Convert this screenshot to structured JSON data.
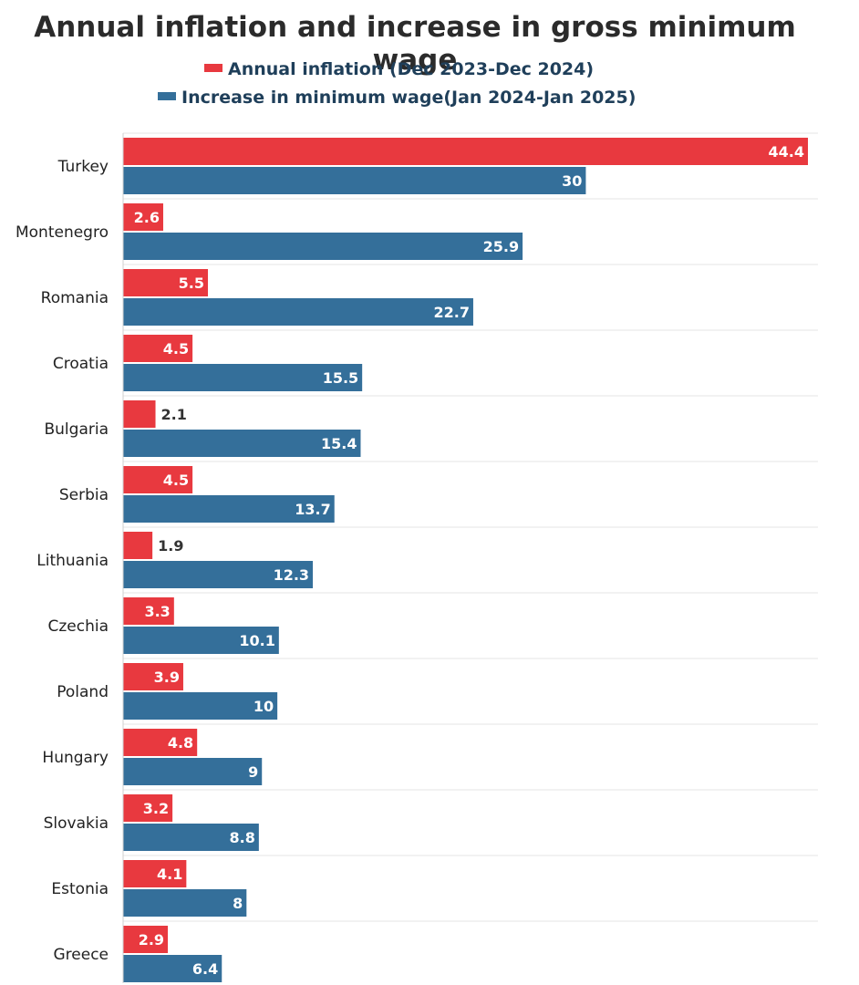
{
  "chart_data": {
    "type": "bar",
    "orientation": "horizontal",
    "title": "Annual inflation and increase in gross minimum wage",
    "categories": [
      "Turkey",
      "Montenegro",
      "Romania",
      "Croatia",
      "Bulgaria",
      "Serbia",
      "Lithuania",
      "Czechia",
      "Poland",
      "Hungary",
      "Slovakia",
      "Estonia",
      "Greece"
    ],
    "series": [
      {
        "name": "Annual inflation (Dec 2023-Dec 2024)",
        "color": "#e8393f",
        "values": [
          44.4,
          2.6,
          5.5,
          4.5,
          2.1,
          4.5,
          1.9,
          3.3,
          3.9,
          4.8,
          3.2,
          4.1,
          2.9
        ]
      },
      {
        "name": "Increase in minimum wage(Jan 2024-Jan 2025)",
        "color": "#346f9a",
        "values": [
          30,
          25.9,
          22.7,
          15.5,
          15.4,
          13.7,
          12.3,
          10.1,
          10,
          9,
          8.8,
          8,
          6.4
        ]
      }
    ],
    "data_labels": true,
    "grid": "horizontal lines between categories",
    "legend_position": "top"
  }
}
